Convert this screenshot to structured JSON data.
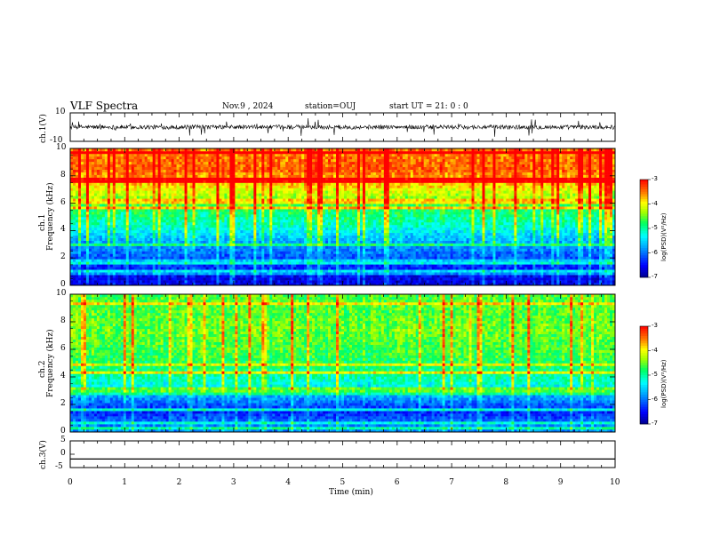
{
  "header": {
    "title": "VLF Spectra",
    "date": "Nov.9 , 2024",
    "station": "station=OUJ",
    "start_ut": "start UT = 21: 0 : 0"
  },
  "chart_data": [
    {
      "type": "line",
      "panel": "ch.1 waveform",
      "ylabel": "ch.1(V)",
      "ylim": [
        -10,
        10
      ],
      "yticks": [
        "10",
        "-10"
      ],
      "xlim": [
        0,
        10
      ],
      "description_mean": 0
    },
    {
      "type": "heatmap",
      "panel": "ch.1 spectrogram",
      "ylabel": "ch.1\nFrequency (kHz)",
      "ylim": [
        0,
        10
      ],
      "yticks": [
        "0",
        "2",
        "4",
        "6",
        "8",
        "10"
      ],
      "xlim": [
        0,
        10
      ],
      "colorbar": {
        "label": "log(PSD)(V²/Hz)",
        "ticks": [
          "-3",
          "-4",
          "-5",
          "-6",
          "-7"
        ],
        "range": [
          -7,
          -3
        ]
      },
      "mean_profile": [
        {
          "f": 0.5,
          "v": -6.6
        },
        {
          "f": 1.5,
          "v": -6.3
        },
        {
          "f": 2.5,
          "v": -6.0
        },
        {
          "f": 3.5,
          "v": -5.6
        },
        {
          "f": 4.5,
          "v": -5.1
        },
        {
          "f": 5.5,
          "v": -4.8
        },
        {
          "f": 6.5,
          "v": -4.3
        },
        {
          "f": 7.5,
          "v": -3.8
        },
        {
          "f": 8.5,
          "v": -3.4
        },
        {
          "f": 9.5,
          "v": -3.5
        }
      ]
    },
    {
      "type": "heatmap",
      "panel": "ch.2 spectrogram",
      "ylabel": "ch.2\nFrequency (kHz)",
      "ylim": [
        0,
        10
      ],
      "yticks": [
        "0",
        "2",
        "4",
        "6",
        "8",
        "10"
      ],
      "xlim": [
        0,
        10
      ],
      "colorbar": {
        "label": "log(PSD)(V²/Hz)",
        "ticks": [
          "-3",
          "-4",
          "-5",
          "-6",
          "-7"
        ],
        "range": [
          -7,
          -3
        ]
      },
      "mean_profile": [
        {
          "f": 0.5,
          "v": -5.9
        },
        {
          "f": 1.5,
          "v": -6.4
        },
        {
          "f": 2.5,
          "v": -5.8
        },
        {
          "f": 3.5,
          "v": -5.2
        },
        {
          "f": 4.5,
          "v": -4.9
        },
        {
          "f": 5.5,
          "v": -4.7
        },
        {
          "f": 6.5,
          "v": -4.6
        },
        {
          "f": 7.5,
          "v": -4.5
        },
        {
          "f": 8.5,
          "v": -4.6
        },
        {
          "f": 9.5,
          "v": -4.6
        }
      ]
    },
    {
      "type": "line",
      "panel": "ch.3 waveform",
      "ylabel": "ch.3(V)",
      "ylim": [
        -5,
        5
      ],
      "yticks": [
        "5",
        "0",
        "-5"
      ],
      "xlim": [
        0,
        10
      ],
      "xticks": [
        "0",
        "1",
        "2",
        "3",
        "4",
        "5",
        "6",
        "7",
        "8",
        "9",
        "10"
      ],
      "xlabel": "Time (min)",
      "constant_value": -1.8
    }
  ]
}
